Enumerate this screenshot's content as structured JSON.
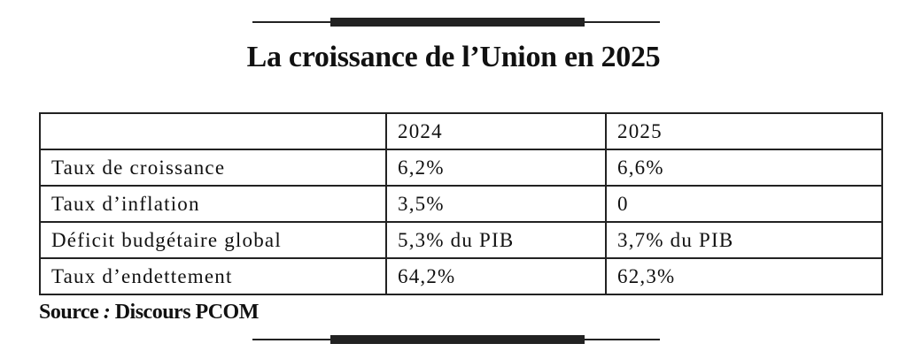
{
  "header": {
    "title": "La croissance de l’Union en 2025"
  },
  "table": {
    "columns": [
      "2024",
      "2025"
    ],
    "rows": [
      [
        "Taux de croissance",
        "6,2%",
        "6,6%"
      ],
      [
        "Taux d’inflation",
        "3,5%",
        "0"
      ],
      [
        "Déficit budgétaire global",
        "5,3% du PIB",
        "3,7% du PIB"
      ],
      [
        "Taux d’endettement",
        "64,2%",
        "62,3%"
      ]
    ]
  },
  "source": {
    "label": "Source",
    "separator": ":",
    "text": "Discours PCOM"
  }
}
